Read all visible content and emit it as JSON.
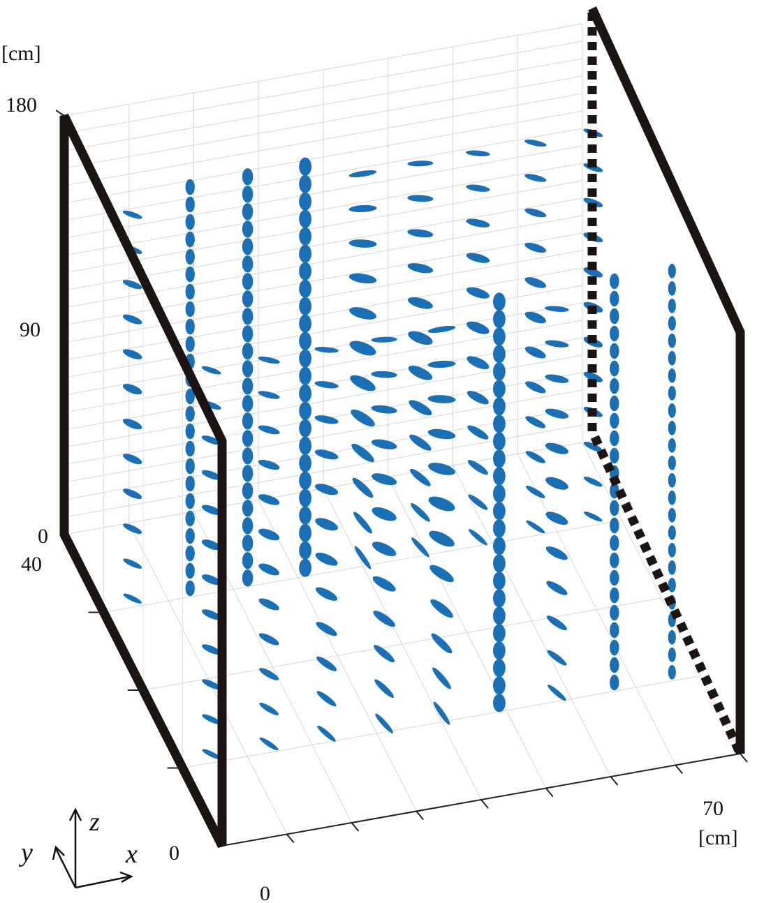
{
  "chart_data": {
    "type": "scatter",
    "title": "",
    "units": {
      "z_unit": "[cm]",
      "x_unit": "[cm]"
    },
    "axes": {
      "x": {
        "letter": "x",
        "range": [
          0,
          70
        ],
        "ticks": [
          "0",
          "70"
        ]
      },
      "y": {
        "letter": "y",
        "range": [
          0,
          40
        ],
        "ticks": [
          "0",
          "40"
        ]
      },
      "z": {
        "letter": "z",
        "range": [
          0,
          180
        ],
        "ticks": [
          "0",
          "90",
          "180"
        ]
      }
    },
    "grid": true,
    "series": [
      {
        "marker": "ellipsoid",
        "color": "#1a6fb5",
        "grid_points": {
          "x_count": 9,
          "y_count": 2,
          "z_count": 12
        },
        "vertical_columns_x": [
          10,
          20,
          30,
          40,
          60,
          70
        ]
      }
    ],
    "frame_color": "#1c1412"
  }
}
